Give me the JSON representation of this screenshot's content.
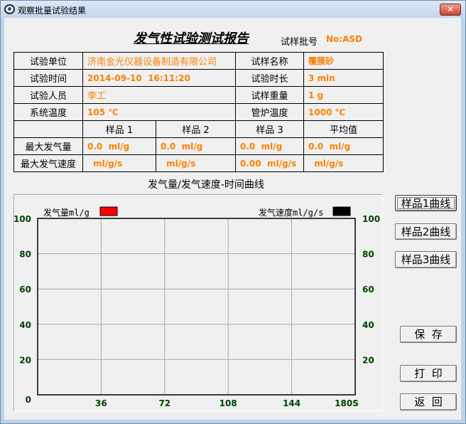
{
  "window": {
    "title": "观察批量试验结果",
    "close_icon": "close-icon"
  },
  "report": {
    "title": "发气性试验测试报告",
    "batch_label": "试样批号",
    "batch_value": "No:ASD",
    "info": {
      "unit_label": "试验单位",
      "unit_value": "济南金光仪器设备制造有限公司",
      "sample_name_label": "试样名称",
      "sample_name_value": "覆膜砂",
      "time_label": "试验时间",
      "time_value": "2014-09-10  16:11:20",
      "duration_label": "试验时长",
      "duration_value": "3 min",
      "person_label": "试验人员",
      "person_value": "李工",
      "weight_label": "试样重量",
      "weight_value": "1 g",
      "sys_temp_label": "系统温度",
      "sys_temp_value": "105 ℃",
      "furnace_temp_label": "管炉温度",
      "furnace_temp_value": "1000 ℃"
    },
    "results": {
      "headers": [
        "样品 1",
        "样品 2",
        "样品 3",
        "平均值"
      ],
      "max_volume_label": "最大发气量",
      "max_volume": [
        "0.0  ml/g",
        "0.0  ml/g",
        "0.0  ml/g",
        "0.0  ml/g"
      ],
      "max_speed_label": "最大发气速度",
      "max_speed": [
        " ml/g/s",
        " ml/g/s",
        "0.00  ml/g/s",
        " ml/g/s"
      ]
    }
  },
  "chart_title": "发气量/发气速度-时间曲线",
  "chart_data": {
    "type": "line",
    "left_legend": "发气量ml/g",
    "left_color": "#ff0000",
    "right_legend": "发气速度ml/g/s",
    "right_color": "#000000",
    "x_ticks": [
      "36",
      "72",
      "108",
      "144",
      "180S"
    ],
    "xlim": [
      0,
      180
    ],
    "y_ticks_left": [
      "0",
      "20",
      "40",
      "60",
      "80",
      "100"
    ],
    "y_ticks_right": [
      "20",
      "40",
      "60",
      "80",
      "100"
    ],
    "ylim": [
      0,
      100
    ],
    "grid": true,
    "series": []
  },
  "buttons": {
    "curve1": "样品1曲线",
    "curve2": "样品2曲线",
    "curve3": "样品3曲线",
    "save": "保  存",
    "print": "打  印",
    "back": "返  回"
  }
}
